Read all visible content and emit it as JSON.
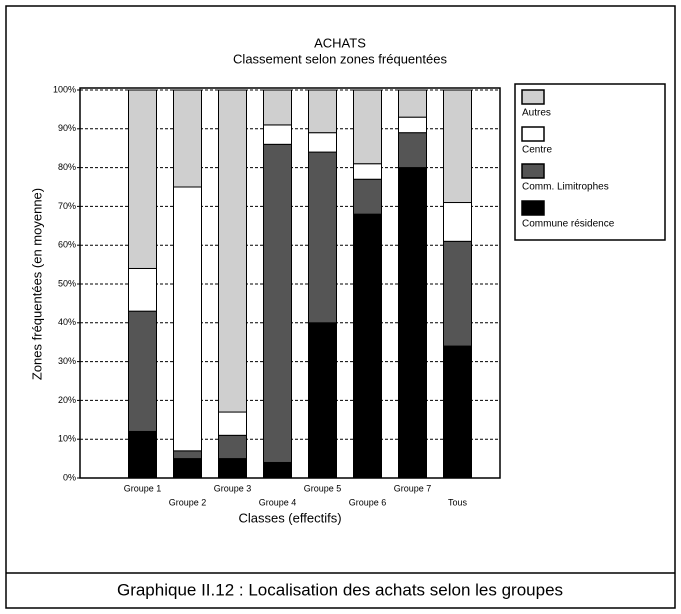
{
  "chart_data": {
    "type": "stacked_bar",
    "title": "ACHATS",
    "subtitle": "Classement selon zones fréquentées",
    "xlabel": "Classes (effectifs)",
    "ylabel": "Zones fréquentées (en moyenne)",
    "caption": "Graphique II.12 : Localisation des achats selon les groupes",
    "categories": [
      "Groupe 1",
      "Groupe 2",
      "Groupe 3",
      "Groupe 4",
      "Groupe 5",
      "Groupe 6",
      "Groupe 7",
      "Tous"
    ],
    "series": [
      {
        "name": "Autres",
        "color": "#cfcfcf",
        "values": [
          46,
          25,
          83,
          9,
          11,
          19,
          7,
          29
        ]
      },
      {
        "name": "Centre",
        "color": "#ffffff",
        "values": [
          11,
          68,
          6,
          5,
          5,
          4,
          4,
          10
        ]
      },
      {
        "name": "Comm. Limitrophes",
        "color": "#555555",
        "values": [
          31,
          2,
          6,
          82,
          44,
          9,
          9,
          27
        ]
      },
      {
        "name": "Commune résidence",
        "color": "#000000",
        "values": [
          12,
          5,
          5,
          4,
          40,
          68,
          80,
          34
        ]
      }
    ],
    "ylim": [
      0,
      100
    ],
    "yticks": [
      {
        "value": 0,
        "label": "0%"
      },
      {
        "value": 10,
        "label": "10%"
      },
      {
        "value": 20,
        "label": "20%"
      },
      {
        "value": 30,
        "label": "30%"
      },
      {
        "value": 40,
        "label": "40%"
      },
      {
        "value": 50,
        "label": "50%"
      },
      {
        "value": 60,
        "label": "60%"
      },
      {
        "value": 70,
        "label": "70%"
      },
      {
        "value": 80,
        "label": "80%"
      },
      {
        "value": 90,
        "label": "90%"
      },
      {
        "value": 100,
        "label": "100%"
      }
    ],
    "grid": true,
    "legend": "right"
  }
}
